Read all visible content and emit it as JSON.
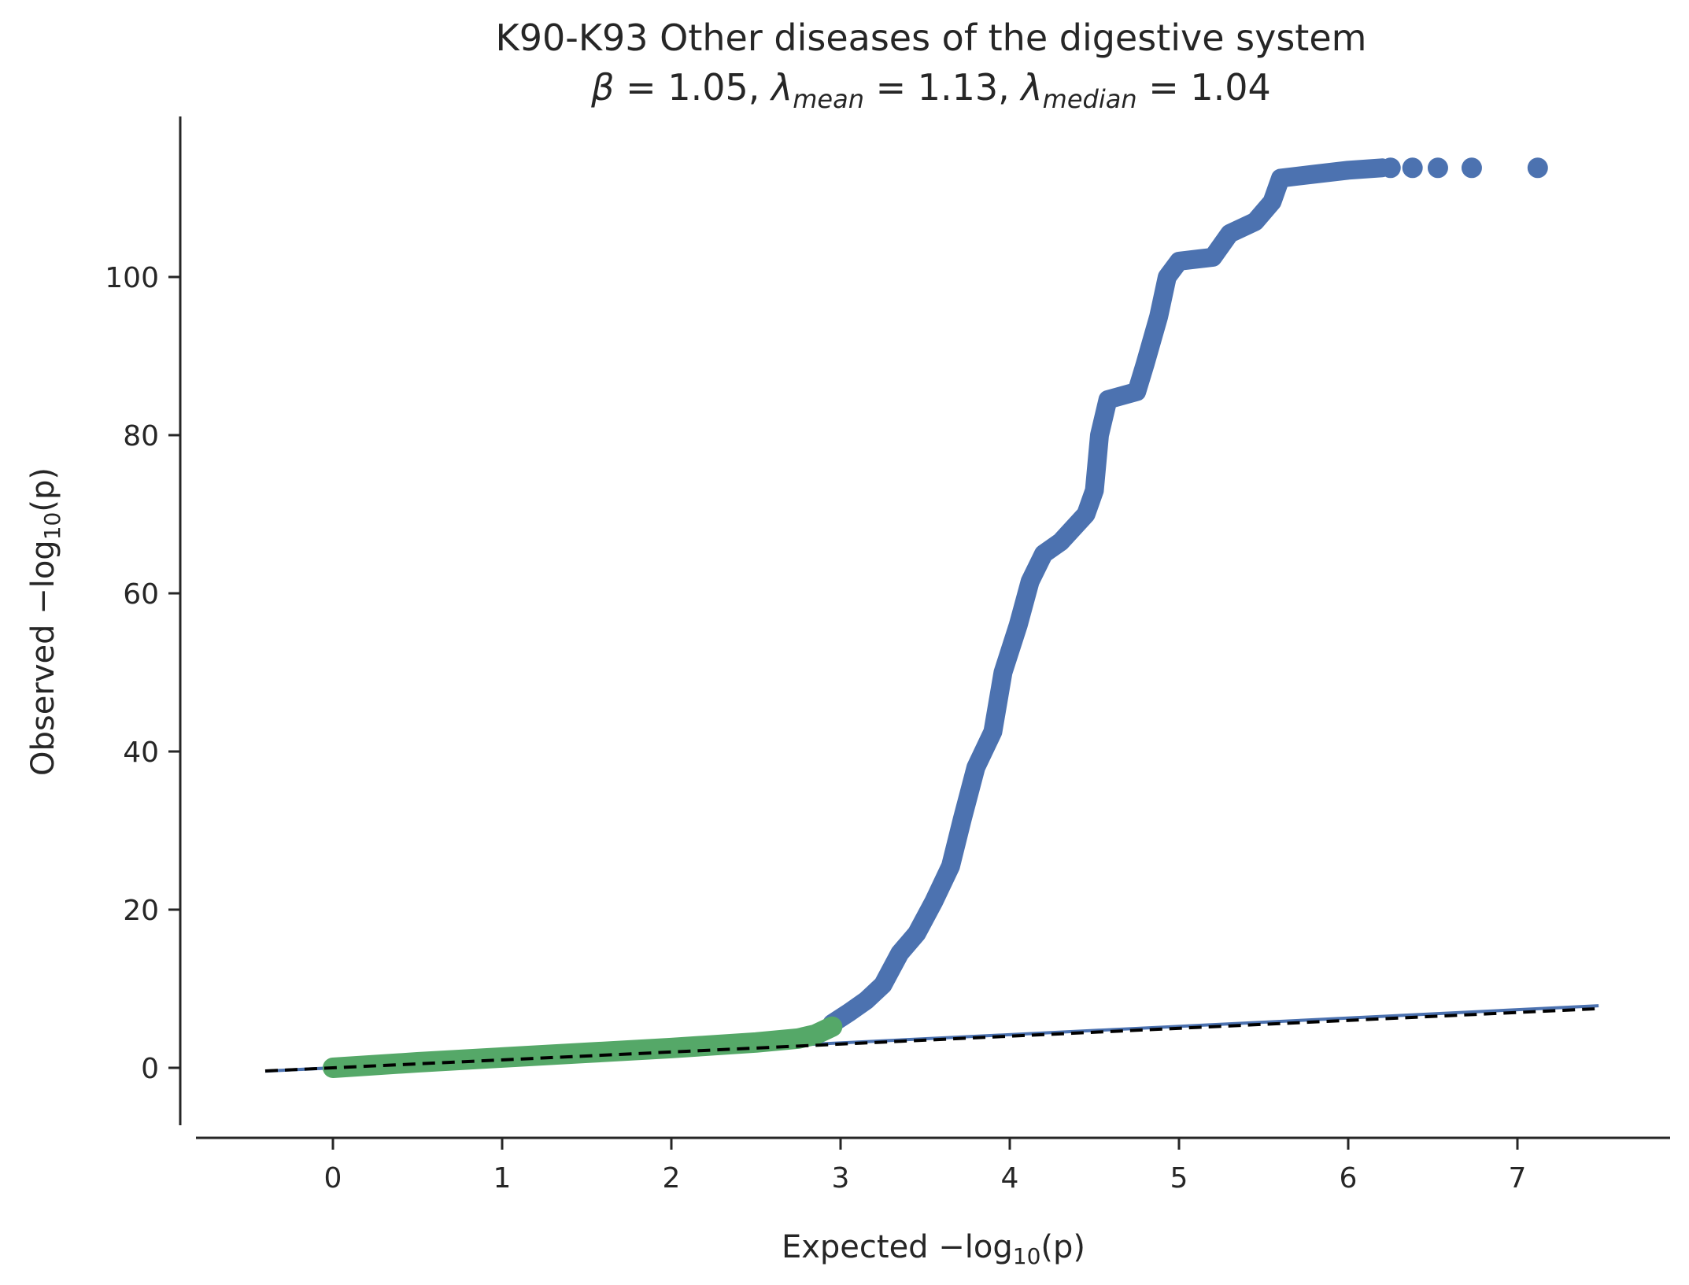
{
  "chart_data": {
    "type": "scatter",
    "title": "K90-K93 Other diseases of the digestive system",
    "subtitle": {
      "beta_symbol": "β",
      "beta_value": " = 1.05, ",
      "lambda_symbol": "λ",
      "mean_sub": "mean",
      "mean_value": " = 1.13, ",
      "median_sub": "median",
      "median_value": " = 1.04"
    },
    "xlabel": {
      "prefix": "Expected −log",
      "sub": "10",
      "suffix": "(p)"
    },
    "ylabel": {
      "prefix": "Observed −log",
      "sub": "10",
      "suffix": "(p)"
    },
    "xlim": [
      -0.8,
      7.9
    ],
    "ylim": [
      -7.5,
      120
    ],
    "x_ticks": [
      0,
      1,
      2,
      3,
      4,
      5,
      6,
      7
    ],
    "x_tick_labels": [
      "0",
      "1",
      "2",
      "3",
      "4",
      "5",
      "6",
      "7"
    ],
    "y_ticks": [
      0,
      20,
      40,
      60,
      80,
      100
    ],
    "y_tick_labels": [
      "0",
      "20",
      "40",
      "60",
      "80",
      "100"
    ],
    "grid": false,
    "colors": {
      "blue": "#4c72b0",
      "green": "#55a868",
      "reference": "#000000"
    },
    "series": [
      {
        "color": "#4c72b0",
        "curve": [
          [
            2.95,
            5.6
          ],
          [
            3.05,
            7.0
          ],
          [
            3.15,
            8.5
          ],
          [
            3.25,
            10.5
          ],
          [
            3.35,
            14.5
          ],
          [
            3.45,
            17.0
          ],
          [
            3.55,
            21.0
          ],
          [
            3.65,
            25.5
          ],
          [
            3.72,
            31.5
          ],
          [
            3.8,
            38.0
          ],
          [
            3.9,
            42.5
          ],
          [
            3.96,
            50.0
          ],
          [
            4.05,
            56.0
          ],
          [
            4.12,
            61.5
          ],
          [
            4.2,
            65.0
          ],
          [
            4.3,
            66.5
          ],
          [
            4.45,
            70.0
          ],
          [
            4.5,
            73.0
          ],
          [
            4.53,
            80.0
          ],
          [
            4.58,
            84.5
          ],
          [
            4.75,
            85.5
          ],
          [
            4.8,
            89.0
          ],
          [
            4.88,
            95.0
          ],
          [
            4.93,
            100.0
          ],
          [
            5.0,
            102.0
          ],
          [
            5.2,
            102.5
          ],
          [
            5.3,
            105.5
          ],
          [
            5.45,
            107.0
          ],
          [
            5.55,
            109.5
          ],
          [
            5.6,
            112.5
          ],
          [
            5.8,
            113.0
          ],
          [
            6.0,
            113.5
          ],
          [
            6.2,
            113.8
          ]
        ],
        "points": [
          [
            6.25,
            113.8
          ],
          [
            6.38,
            113.8
          ],
          [
            6.53,
            113.8
          ],
          [
            6.73,
            113.8
          ],
          [
            7.12,
            113.8
          ]
        ]
      },
      {
        "color": "#55a868",
        "curve": [
          [
            0.0,
            0.0
          ],
          [
            0.5,
            0.7
          ],
          [
            1.0,
            1.3
          ],
          [
            1.5,
            1.9
          ],
          [
            2.0,
            2.5
          ],
          [
            2.5,
            3.2
          ],
          [
            2.75,
            3.7
          ],
          [
            2.85,
            4.2
          ],
          [
            2.95,
            5.2
          ]
        ]
      }
    ],
    "reference_lines": [
      {
        "color": "#4c72b0",
        "style": "solid",
        "x": [
          -0.4,
          7.48
        ],
        "y": [
          -0.42,
          7.85
        ]
      },
      {
        "color": "#000000",
        "style": "dashed",
        "x": [
          -0.4,
          7.48
        ],
        "y": [
          -0.4,
          7.48
        ]
      }
    ]
  }
}
